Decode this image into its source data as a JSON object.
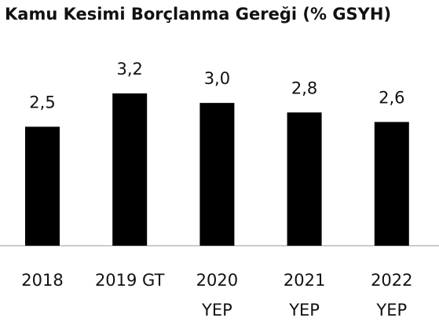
{
  "chart_data": {
    "type": "bar",
    "title": "Kamu Kesimi Borçlanma Gereği (% GSYH)",
    "categories": [
      "2018",
      "2019 GT",
      "2020\nYEP",
      "2021\nYEP",
      "2022\nYEP"
    ],
    "values": [
      2.5,
      3.2,
      3.0,
      2.8,
      2.6
    ],
    "value_labels": [
      "2,5",
      "3,2",
      "3,0",
      "2,8",
      "2,6"
    ],
    "color": "#000000"
  }
}
